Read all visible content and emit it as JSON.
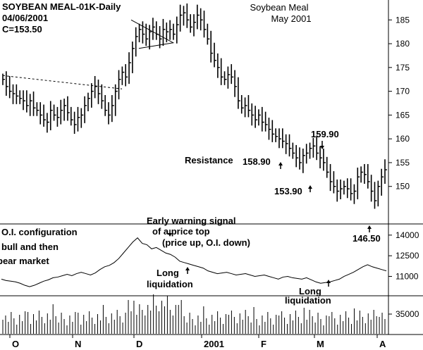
{
  "header": {
    "symbol": "SOYBEAN MEAL-01K-Daily",
    "date": "04/06/2001",
    "close": "C=153.50"
  },
  "title": {
    "line1": "Soybean Meal",
    "line2": "May 2001"
  },
  "annotations": {
    "resistance": "Resistance",
    "p158": "158.90",
    "p159": "159.90",
    "p153": "153.90",
    "p146": "146.50",
    "early1": "Early warning signal",
    "early2": "of a price top",
    "early3": "(price up, O.I. down)",
    "long1a": "Long",
    "long1b": "liquidation",
    "long2a": "Long",
    "long2b": "liquidation",
    "oi1": "O.I. configuration",
    "oi2": "bull and then",
    "oi3": "bear market"
  },
  "chart_data": {
    "type": "bar",
    "title": "Soybean Meal May 2001",
    "x_labels": [
      "O",
      "N",
      "D",
      "2001",
      "F",
      "M",
      "A"
    ],
    "price": {
      "ylim": [
        143,
        188
      ],
      "ticks": [
        150,
        155,
        160,
        165,
        170,
        175,
        180,
        185
      ],
      "ohlc_close": [
        172.5,
        171.0,
        170.0,
        169.5,
        169.0,
        168.5,
        168.0,
        167.0,
        168.0,
        166.5,
        166.0,
        165.0,
        164.0,
        163.5,
        166.0,
        165.0,
        164.5,
        166.0,
        167.0,
        165.5,
        164.0,
        163.0,
        164.5,
        165.0,
        167.0,
        168.5,
        170.0,
        171.0,
        169.5,
        168.0,
        166.0,
        165.0,
        167.0,
        170.0,
        172.5,
        174.0,
        173.0,
        176.0,
        179.0,
        181.5,
        183.0,
        182.0,
        181.0,
        182.5,
        183.5,
        182.0,
        181.0,
        183.0,
        182.5,
        183.0,
        182.0,
        184.0,
        186.0,
        186.5,
        185.0,
        183.5,
        184.5,
        186.0,
        185.0,
        183.0,
        181.0,
        178.0,
        176.5,
        175.0,
        173.0,
        172.5,
        173.5,
        173.0,
        171.0,
        168.0,
        166.5,
        167.0,
        166.0,
        165.0,
        164.0,
        165.0,
        163.5,
        163.0,
        162.0,
        161.0,
        160.5,
        160.0,
        159.5,
        159.0,
        158.0,
        157.0,
        156.0,
        155.0,
        156.5,
        157.0,
        158.0,
        158.5,
        157.0,
        156.0,
        155.0,
        153.0,
        151.0,
        150.0,
        149.0,
        149.5,
        150.0,
        149.5,
        148.5,
        149.0,
        152.0,
        153.0,
        152.5,
        151.0,
        149.0,
        147.0,
        150.0,
        152.0,
        153.5
      ],
      "resistance_line": [
        [
          0,
          173.3
        ],
        [
          170,
          170.5
        ]
      ],
      "triangle": [
        [
          183,
          185.0
        ],
        [
          243,
          180.2
        ],
        [
          194,
          179.0
        ]
      ],
      "points": [
        {
          "label": "158.90",
          "value": 158.9
        },
        {
          "label": "159.90",
          "value": 159.9
        },
        {
          "label": "153.90",
          "value": 153.9
        },
        {
          "label": "146.50",
          "value": 146.5
        }
      ]
    },
    "open_interest": {
      "ticks": [
        11000,
        12500,
        14000
      ],
      "values": [
        10800,
        10700,
        10650,
        10600,
        10500,
        10350,
        10250,
        10350,
        10500,
        10650,
        10750,
        10900,
        10950,
        11050,
        11150,
        11050,
        11200,
        11300,
        11200,
        11100,
        11250,
        11500,
        11700,
        11800,
        12000,
        12300,
        12700,
        13100,
        13500,
        13800,
        13400,
        13300,
        13000,
        13100,
        12900,
        12700,
        12600,
        12400,
        12100,
        12000,
        11900,
        11800,
        11700,
        11600,
        11400,
        11300,
        11200,
        11250,
        11300,
        11200,
        11100,
        11150,
        11200,
        11100,
        11000,
        11050,
        11100,
        11000,
        10900,
        10800,
        10950,
        11000,
        10900,
        10850,
        10800,
        10900,
        10750,
        10600,
        10500,
        10550,
        10600,
        10700,
        10800,
        11000,
        11150,
        11300,
        11500,
        11700,
        11850,
        11700,
        11600,
        11500,
        11400
      ]
    },
    "volume": {
      "ticks": [
        35000
      ]
    }
  }
}
